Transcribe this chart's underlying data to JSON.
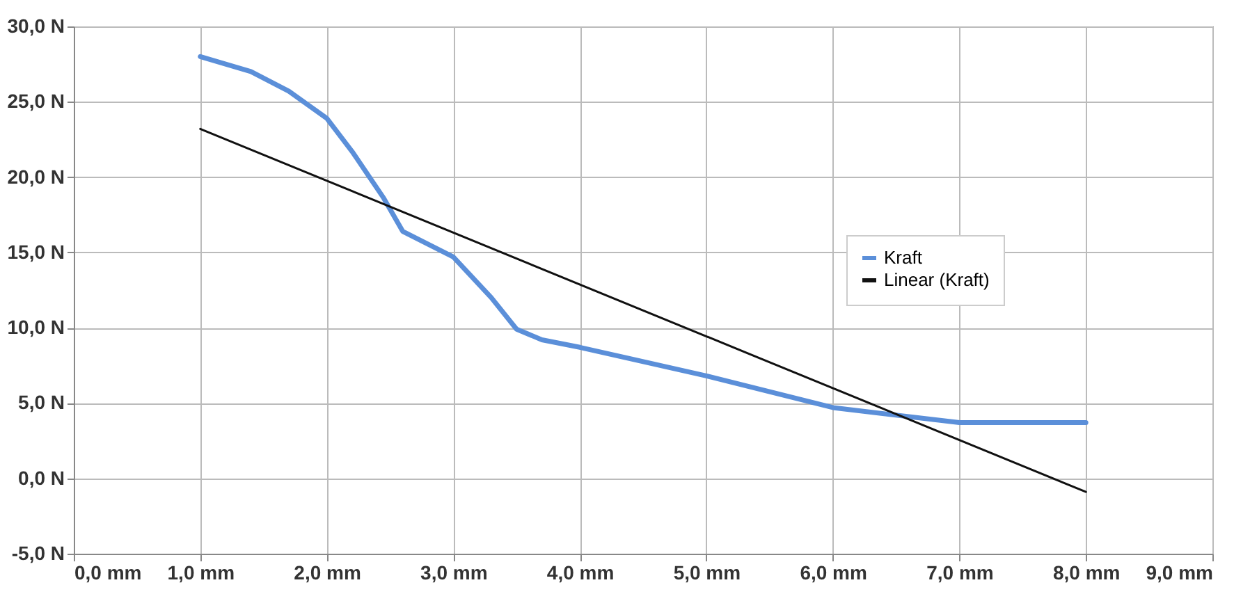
{
  "chart_data": {
    "type": "line",
    "xlim": [
      0,
      9
    ],
    "ylim": [
      -5,
      30
    ],
    "xticks": [
      {
        "value": 0,
        "label": "0,0 mm"
      },
      {
        "value": 1,
        "label": "1,0 mm"
      },
      {
        "value": 2,
        "label": "2,0 mm"
      },
      {
        "value": 3,
        "label": "3,0 mm"
      },
      {
        "value": 4,
        "label": "4,0 mm"
      },
      {
        "value": 5,
        "label": "5,0 mm"
      },
      {
        "value": 6,
        "label": "6,0 mm"
      },
      {
        "value": 7,
        "label": "7,0 mm"
      },
      {
        "value": 8,
        "label": "8,0 mm"
      },
      {
        "value": 9,
        "label": "9,0 mm"
      }
    ],
    "yticks": [
      {
        "value": -5,
        "label": "-5,0 N"
      },
      {
        "value": 0,
        "label": "0,0 N"
      },
      {
        "value": 5,
        "label": "5,0 N"
      },
      {
        "value": 10,
        "label": "10,0 N"
      },
      {
        "value": 15,
        "label": "15,0 N"
      },
      {
        "value": 20,
        "label": "20,0 N"
      },
      {
        "value": 25,
        "label": "25,0 N"
      },
      {
        "value": 30,
        "label": "30,0 N"
      }
    ],
    "grid": true,
    "legend": "top right",
    "line_style": "solid",
    "series": [
      {
        "name": "Kraft",
        "color": "#5b8fd9",
        "x": [
          1.0,
          1.4,
          1.7,
          2.0,
          2.2,
          2.45,
          2.6,
          3.0,
          3.3,
          3.5,
          3.7,
          4.0,
          5.0,
          6.0,
          7.0,
          8.0
        ],
        "values": [
          28.0,
          27.0,
          25.7,
          23.9,
          21.7,
          18.6,
          16.4,
          14.7,
          12.0,
          9.9,
          9.2,
          8.7,
          6.8,
          4.7,
          3.7,
          3.7
        ]
      },
      {
        "name": "Linear (Kraft)",
        "color": "#111111",
        "x": [
          1.0,
          8.0
        ],
        "values": [
          23.2,
          -0.9
        ]
      }
    ]
  }
}
